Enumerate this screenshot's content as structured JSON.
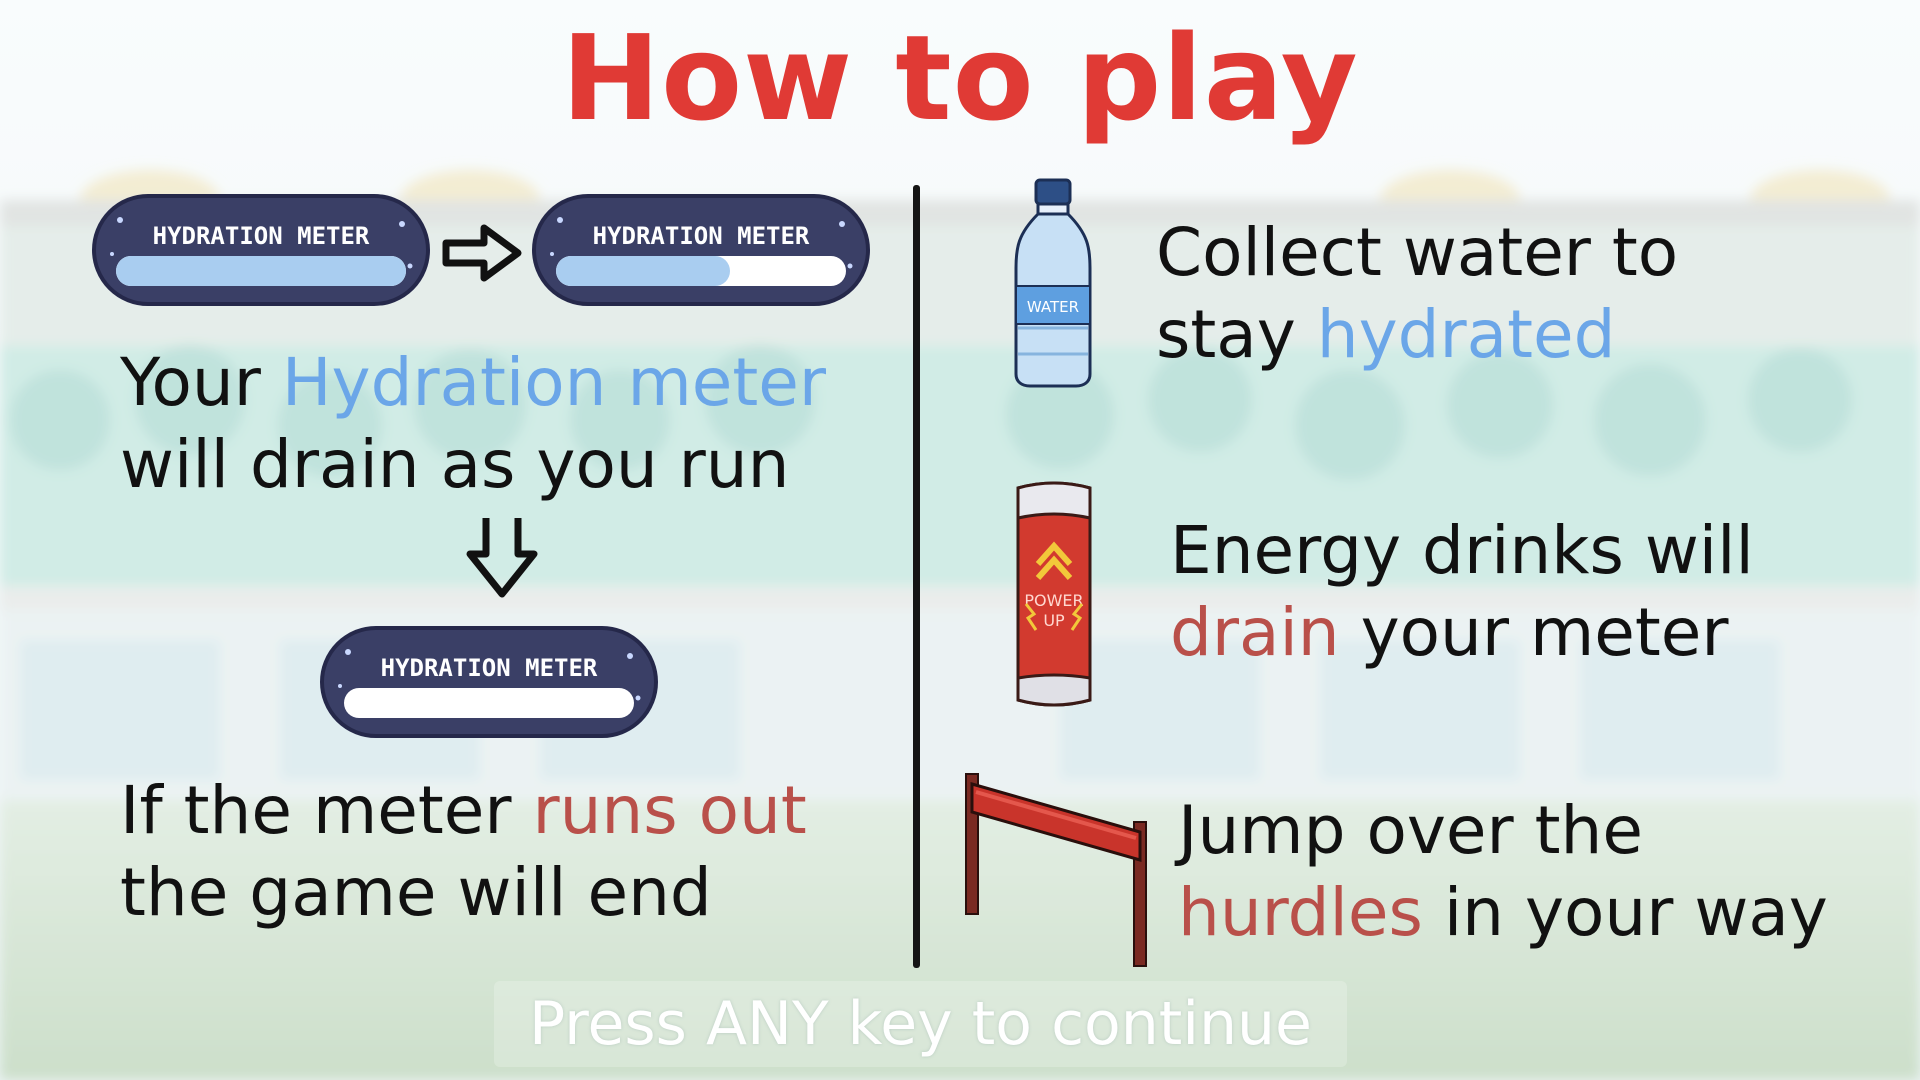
{
  "title": "How to play",
  "meters": {
    "label": "HYDRATION METER",
    "full_level": 1.0,
    "partial_level": 0.6,
    "empty_level": 0.0
  },
  "left": {
    "line1_pre": "Your ",
    "line1_highlight": "Hydration meter",
    "line2": "will drain as you run",
    "line3_pre": "If the meter ",
    "line3_highlight": "runs out",
    "line4": "the game will end"
  },
  "right": {
    "water": {
      "line1": "Collect water to",
      "line2_pre": "stay ",
      "line2_highlight": "hydrated",
      "bottle_label": "WATER"
    },
    "energy": {
      "line1": "Energy drinks will",
      "line2_highlight": "drain",
      "line2_post": " your meter",
      "can_label_1": "POWER",
      "can_label_2": "UP"
    },
    "hurdle": {
      "line1": "Jump over the",
      "line2_highlight": "hurdles",
      "line2_post": " in your way"
    }
  },
  "footer": {
    "continue_label": "Press ANY key to continue"
  },
  "colors": {
    "title": "#e03a35",
    "highlight_blue": "#6ba6e8",
    "highlight_red": "#b9504a",
    "meter_frame": "#3a3f66",
    "meter_fill": "#a9cdf0"
  }
}
